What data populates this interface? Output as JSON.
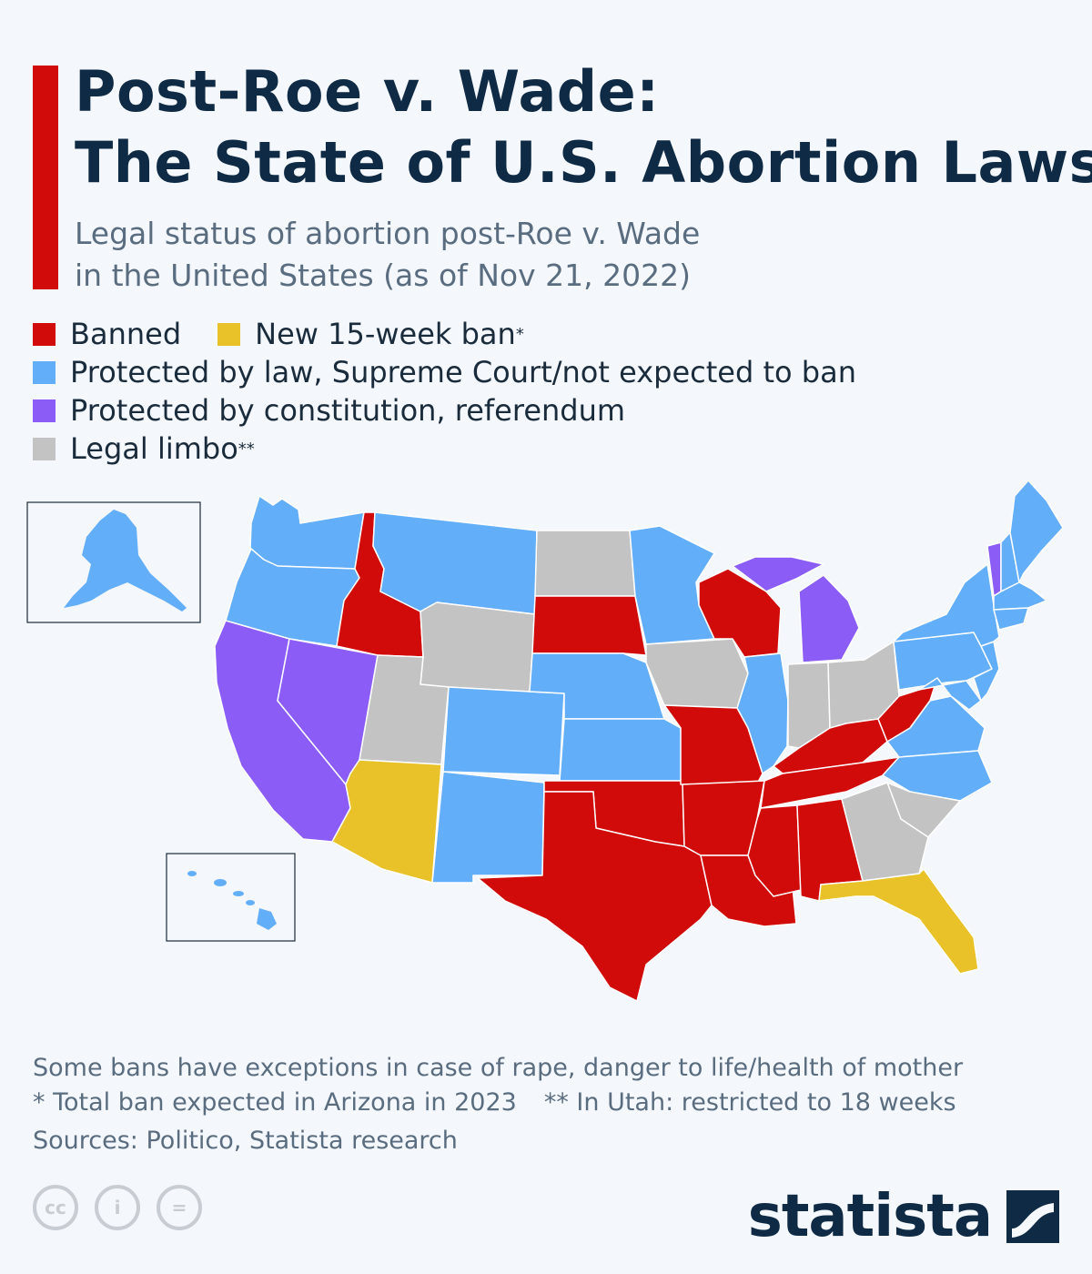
{
  "header": {
    "title_line1": "Post-Roe v. Wade:",
    "title_line2": "The State of U.S. Abortion Laws",
    "subtitle_line1": "Legal status of abortion post-Roe v. Wade",
    "subtitle_line2": "in the United States (as of Nov 21, 2022)",
    "accent_color": "#d10a0a"
  },
  "legend": {
    "banned": {
      "label": "Banned",
      "color": "#d10a0a"
    },
    "new15": {
      "label": "New 15-week ban",
      "marker": "*",
      "color": "#e9c22a"
    },
    "protected_law": {
      "label": "Protected by law, Supreme Court/not expected to ban",
      "color": "#63aef8"
    },
    "protected_const": {
      "label": "Protected by constitution, referendum",
      "color": "#8b5cf6"
    },
    "limbo": {
      "label": "Legal limbo",
      "marker": "**",
      "color": "#c3c3c3"
    }
  },
  "map": {
    "icons": [
      "us-map",
      "alaska-inset",
      "hawaii-inset"
    ]
  },
  "footer": {
    "note": "Some bans have exceptions in case of rape, danger to life/health of mother",
    "footnote1": "*  Total ban expected in Arizona in 2023",
    "footnote2": "** In Utah: restricted to 18 weeks",
    "sources": "Sources: Politico, Statista research"
  },
  "license_icons": {
    "cc": "cc",
    "by": "i",
    "nd": "="
  },
  "brand": {
    "name": "statista"
  }
}
